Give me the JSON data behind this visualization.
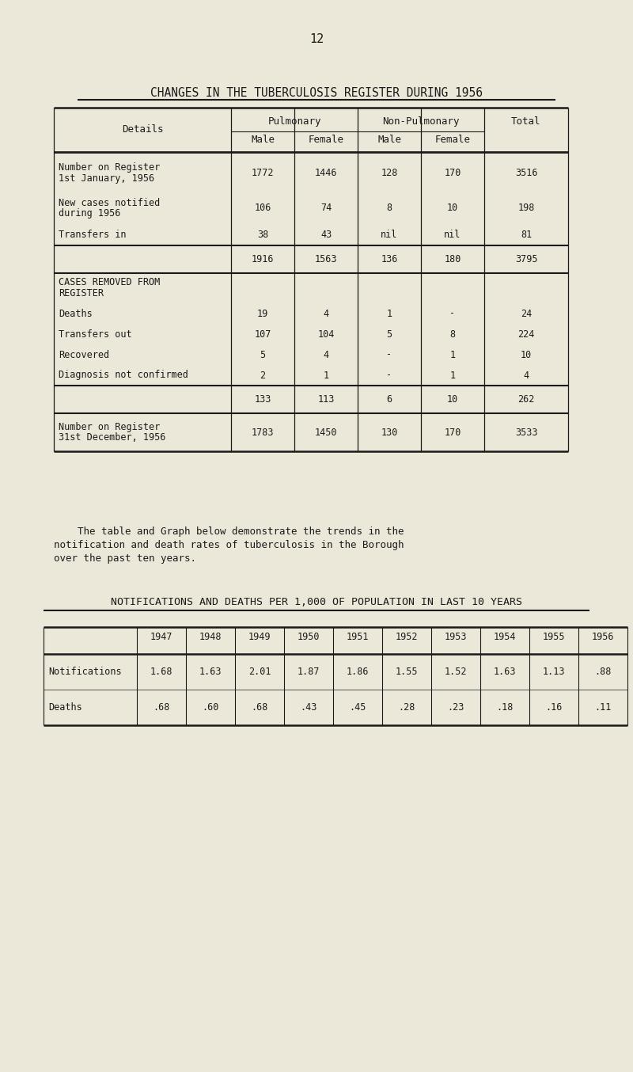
{
  "page_number": "12",
  "bg_color": "#ece8d9",
  "title1": "CHANGES IN THE TUBERCULOSIS REGISTER DURING 1956",
  "years": [
    "1947",
    "1948",
    "1949",
    "1950",
    "1951",
    "1952",
    "1953",
    "1954",
    "1955",
    "1956"
  ],
  "notifications": [
    "1.68",
    "1.63",
    "2.01",
    "1.87",
    "1.86",
    "1.55",
    "1.52",
    "1.63",
    "1.13",
    ".88"
  ],
  "deaths": [
    ".68",
    ".60",
    ".68",
    ".43",
    ".45",
    ".28",
    ".23",
    ".18",
    ".16",
    ".11"
  ],
  "title2": "NOTIFICATIONS AND DEATHS PER 1,000 OF POPULATION IN LAST 10 YEARS",
  "paragraph_lines": [
    "    The table and Graph below demonstrate the trends in the",
    "notification and death rates of tuberculosis in the Borough",
    "over the past ten years."
  ]
}
